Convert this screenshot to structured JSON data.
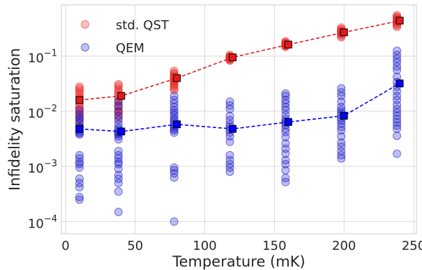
{
  "chart_data": {
    "type": "scatter",
    "xlabel": "Temperature (mK)",
    "ylabel": "Infidelity saturation",
    "xlim": [
      -3,
      252
    ],
    "ylim": [
      6e-05,
      0.85
    ],
    "yscale": "log",
    "grid": true,
    "legend_position": "top-left",
    "x_ticks": [
      {
        "value": 0,
        "label": "0"
      },
      {
        "value": 50,
        "label": "50"
      },
      {
        "value": 100,
        "label": "100"
      },
      {
        "value": 150,
        "label": "150"
      },
      {
        "value": 200,
        "label": "200"
      },
      {
        "value": 250,
        "label": "250"
      }
    ],
    "y_ticks": [
      {
        "value": 0.0001,
        "base": "10",
        "exp": "−4"
      },
      {
        "value": 0.001,
        "base": "10",
        "exp": "−3"
      },
      {
        "value": 0.01,
        "base": "10",
        "exp": "−2"
      },
      {
        "value": 0.1,
        "base": "10",
        "exp": "−1"
      }
    ],
    "series": [
      {
        "name": "std. QST",
        "color": "#e8241f",
        "marker_color": "#e41a1c",
        "points": [
          {
            "x": 10,
            "ys": [
              0.028,
              0.026,
              0.024,
              0.022,
              0.02,
              0.018,
              0.017,
              0.015,
              0.013,
              0.012,
              0.011,
              0.01,
              0.009,
              0.0082,
              0.0075,
              0.006,
              0.0053,
              0.0052
            ]
          },
          {
            "x": 38,
            "ys": [
              0.031,
              0.029,
              0.026,
              0.024,
              0.022,
              0.02,
              0.018,
              0.016,
              0.015,
              0.013,
              0.012,
              0.011,
              0.01,
              0.0095,
              0.0085,
              0.0075
            ]
          },
          {
            "x": 78,
            "ys": [
              0.054,
              0.05,
              0.047,
              0.044,
              0.042,
              0.04,
              0.038,
              0.036,
              0.034,
              0.032,
              0.03,
              0.028,
              0.026,
              0.024
            ]
          },
          {
            "x": 118,
            "ys": [
              0.105,
              0.1,
              0.098,
              0.095,
              0.093,
              0.09,
              0.088,
              0.086,
              0.083
            ]
          },
          {
            "x": 158,
            "ys": [
              0.185,
              0.178,
              0.172,
              0.168,
              0.164,
              0.16,
              0.156,
              0.152,
              0.148
            ]
          },
          {
            "x": 198,
            "ys": [
              0.33,
              0.31,
              0.295,
              0.285,
              0.275,
              0.265,
              0.255,
              0.245,
              0.232,
              0.22
            ]
          },
          {
            "x": 238,
            "ys": [
              0.55,
              0.52,
              0.5,
              0.48,
              0.46,
              0.44,
              0.42,
              0.4,
              0.38,
              0.36,
              0.34
            ]
          }
        ],
        "means": [
          {
            "x": 10,
            "y": 0.016
          },
          {
            "x": 40,
            "y": 0.019
          },
          {
            "x": 80,
            "y": 0.04
          },
          {
            "x": 120,
            "y": 0.095
          },
          {
            "x": 160,
            "y": 0.162
          },
          {
            "x": 200,
            "y": 0.27
          },
          {
            "x": 240,
            "y": 0.44
          }
        ]
      },
      {
        "name": "QEM",
        "color": "#1414c8",
        "marker_color": "#0000ff",
        "points": [
          {
            "x": 10,
            "ys": [
              0.0105,
              0.0088,
              0.0076,
              0.007,
              0.0062,
              0.0052,
              0.0048,
              0.0045,
              0.0042,
              0.004,
              0.0038,
              0.0016,
              0.0014,
              0.0012,
              0.0011,
              0.00095,
              0.0006,
              0.0005,
              0.00042,
              0.00028,
              0.00025
            ]
          },
          {
            "x": 38,
            "ys": [
              0.015,
              0.0125,
              0.01,
              0.0082,
              0.0069,
              0.0058,
              0.005,
              0.0046,
              0.0042,
              0.004,
              0.0038,
              0.0035,
              0.0031,
              0.0019,
              0.0016,
              0.0014,
              0.0012,
              0.0011,
              0.0009,
              0.0007,
              0.0006,
              0.0005,
              0.00035,
              0.00015
            ]
          },
          {
            "x": 78,
            "ys": [
              0.019,
              0.016,
              0.014,
              0.012,
              0.0105,
              0.0095,
              0.0085,
              0.0075,
              0.0069,
              0.0063,
              0.0057,
              0.0052,
              0.0048,
              0.0045,
              0.0041,
              0.00095,
              0.00085,
              0.00075,
              0.00063,
              0.0001
            ]
          },
          {
            "x": 118,
            "ys": [
              0.015,
              0.0128,
              0.011,
              0.0082,
              0.0069,
              0.0058,
              0.0052,
              0.0046,
              0.0041,
              0.0035,
              0.0028,
              0.0016,
              0.0013,
              0.0011,
              0.00095,
              0.0008
            ]
          },
          {
            "x": 158,
            "ys": [
              0.021,
              0.019,
              0.016,
              0.014,
              0.012,
              0.0105,
              0.0086,
              0.0073,
              0.0066,
              0.0061,
              0.0056,
              0.0048,
              0.0042,
              0.0034,
              0.0026,
              0.0021,
              0.0017,
              0.0013,
              0.0011,
              0.00085,
              0.00062,
              0.00052
            ]
          },
          {
            "x": 198,
            "ys": [
              0.026,
              0.022,
              0.019,
              0.015,
              0.012,
              0.0105,
              0.0095,
              0.0086,
              0.0075,
              0.0068,
              0.006,
              0.0052,
              0.0045,
              0.0035,
              0.0027,
              0.0023,
              0.0019,
              0.0016,
              0.0014
            ]
          },
          {
            "x": 238,
            "ys": [
              0.125,
              0.105,
              0.09,
              0.078,
              0.065,
              0.056,
              0.042,
              0.034,
              0.028,
              0.023,
              0.019,
              0.016,
              0.013,
              0.011,
              0.0095,
              0.0083,
              0.0072,
              0.0063,
              0.0055,
              0.0048,
              0.0036,
              0.0017
            ]
          }
        ],
        "means": [
          {
            "x": 10,
            "y": 0.0048
          },
          {
            "x": 40,
            "y": 0.0043
          },
          {
            "x": 80,
            "y": 0.0058
          },
          {
            "x": 120,
            "y": 0.0048
          },
          {
            "x": 160,
            "y": 0.0064
          },
          {
            "x": 200,
            "y": 0.0083
          },
          {
            "x": 240,
            "y": 0.032
          }
        ]
      }
    ]
  }
}
